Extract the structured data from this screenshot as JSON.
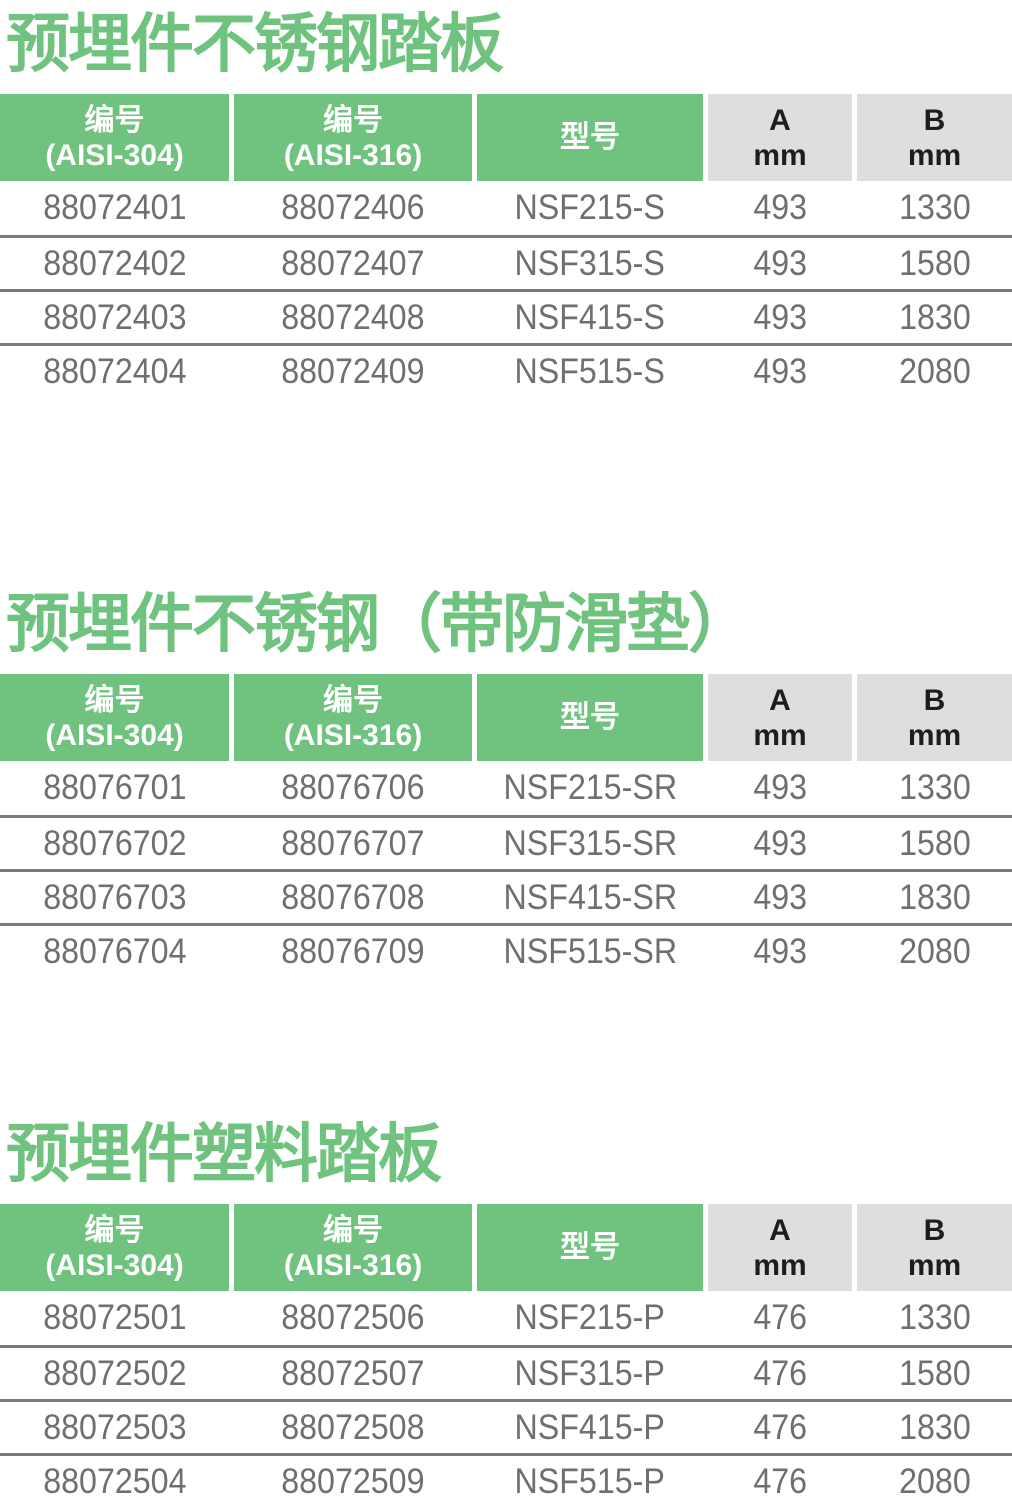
{
  "page": {
    "accent_green": "#6fc37e",
    "header_gray": "#dedede",
    "data_text_color": "#6f6f6f"
  },
  "columns": [
    {
      "line1": "编号",
      "line2": "(AISI-304)"
    },
    {
      "line1": "编号",
      "line2": "(AISI-316)"
    },
    {
      "line1": "型号",
      "line2": ""
    },
    {
      "line1": "A",
      "line2": "mm"
    },
    {
      "line1": "B",
      "line2": "mm"
    }
  ],
  "sections": [
    {
      "title": "预埋件不锈钢踏板",
      "rows": [
        [
          "88072401",
          "88072406",
          "NSF215-S",
          "493",
          "1330"
        ],
        [
          "88072402",
          "88072407",
          "NSF315-S",
          "493",
          "1580"
        ],
        [
          "88072403",
          "88072408",
          "NSF415-S",
          "493",
          "1830"
        ],
        [
          "88072404",
          "88072409",
          "NSF515-S",
          "493",
          "2080"
        ]
      ]
    },
    {
      "title": "预埋件不锈钢（带防滑垫）",
      "rows": [
        [
          "88076701",
          "88076706",
          "NSF215-SR",
          "493",
          "1330"
        ],
        [
          "88076702",
          "88076707",
          "NSF315-SR",
          "493",
          "1580"
        ],
        [
          "88076703",
          "88076708",
          "NSF415-SR",
          "493",
          "1830"
        ],
        [
          "88076704",
          "88076709",
          "NSF515-SR",
          "493",
          "2080"
        ]
      ]
    },
    {
      "title": "预埋件塑料踏板",
      "rows": [
        [
          "88072501",
          "88072506",
          "NSF215-P",
          "476",
          "1330"
        ],
        [
          "88072502",
          "88072507",
          "NSF315-P",
          "476",
          "1580"
        ],
        [
          "88072503",
          "88072508",
          "NSF415-P",
          "476",
          "1830"
        ],
        [
          "88072504",
          "88072509",
          "NSF515-P",
          "476",
          "2080"
        ]
      ]
    }
  ]
}
